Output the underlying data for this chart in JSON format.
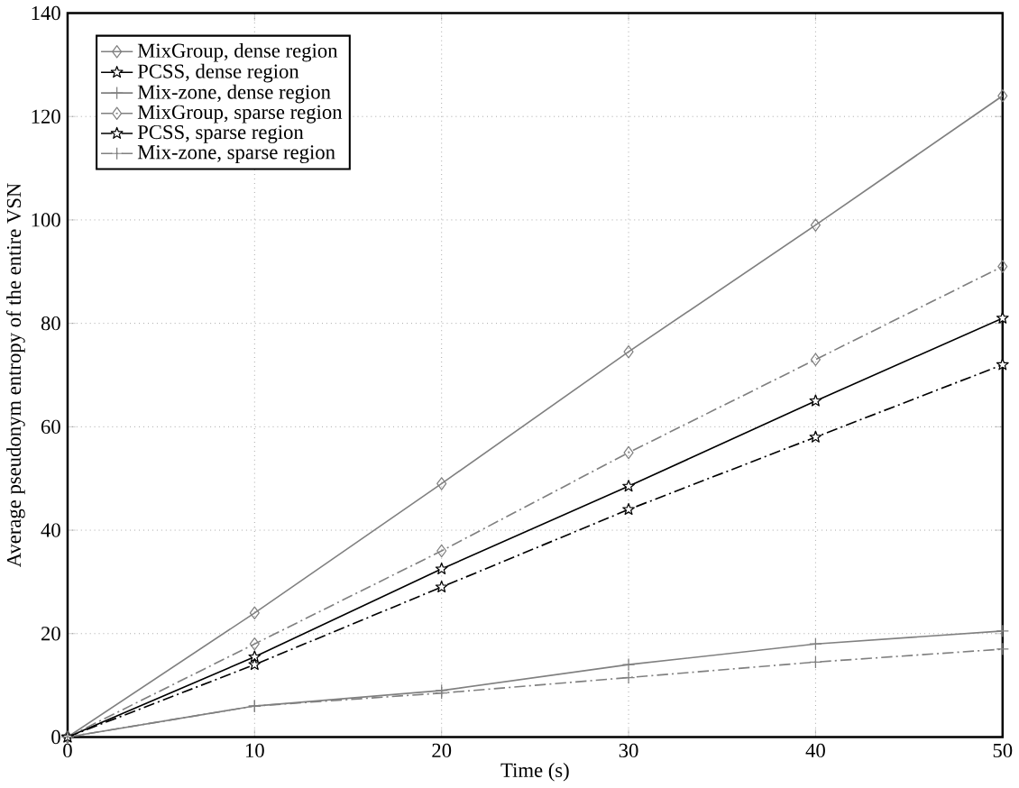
{
  "chart_data": {
    "type": "line",
    "xlabel": "Time (s)",
    "ylabel": "Average pseudonym entropy of the entire VSN",
    "x": [
      0,
      10,
      20,
      30,
      40,
      50
    ],
    "series": [
      {
        "name": "MixGroup, dense region",
        "color": "#808080",
        "marker": "diamond",
        "line_style": "solid",
        "values": [
          0,
          24,
          49,
          74.5,
          99,
          124
        ]
      },
      {
        "name": "PCSS, dense region",
        "color": "#000000",
        "marker": "star",
        "line_style": "solid",
        "values": [
          0,
          15.5,
          32.5,
          48.5,
          65,
          81
        ]
      },
      {
        "name": "Mix-zone, dense region",
        "color": "#808080",
        "marker": "cross",
        "line_style": "solid",
        "values": [
          0,
          6,
          9,
          14,
          18,
          20.5
        ]
      },
      {
        "name": "MixGroup, sparse region",
        "color": "#808080",
        "marker": "diamond",
        "line_style": "dashdot",
        "values": [
          0,
          18,
          36,
          55,
          73,
          91
        ]
      },
      {
        "name": "PCSS, sparse region",
        "color": "#000000",
        "marker": "star",
        "line_style": "dashdot",
        "values": [
          0,
          14,
          29,
          44,
          58,
          72
        ]
      },
      {
        "name": "Mix-zone, sparse region",
        "color": "#808080",
        "marker": "cross",
        "line_style": "dashdot",
        "values": [
          0,
          6,
          8.5,
          11.5,
          14.5,
          17
        ]
      }
    ],
    "xlim": [
      0,
      50
    ],
    "ylim": [
      0,
      140
    ],
    "xticks": [
      0,
      10,
      20,
      30,
      40,
      50
    ],
    "yticks": [
      0,
      20,
      40,
      60,
      80,
      100,
      120,
      140
    ],
    "grid": true,
    "legend": "top left"
  }
}
